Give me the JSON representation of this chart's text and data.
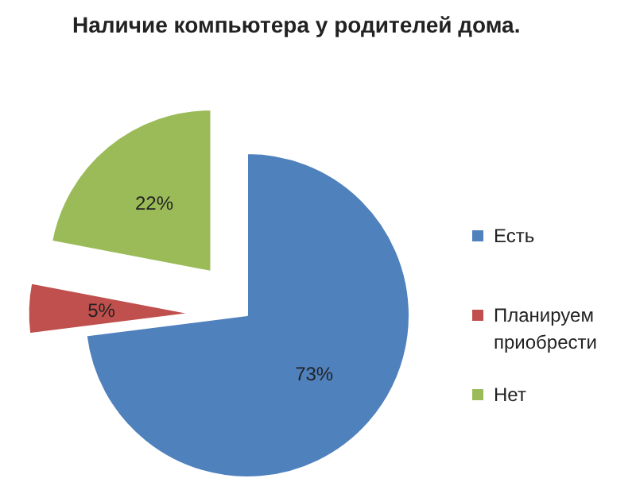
{
  "chart_data": {
    "type": "pie",
    "title": "Наличие компьютера у родителей дома.",
    "categories": [
      "Есть",
      "Планируем приобрести",
      "Нет"
    ],
    "values": [
      73,
      5,
      22
    ],
    "colors": [
      "#4f81bd",
      "#c0504d",
      "#9bbb59"
    ],
    "value_labels": [
      "73%",
      "5%",
      "22%"
    ],
    "legend": "right"
  }
}
